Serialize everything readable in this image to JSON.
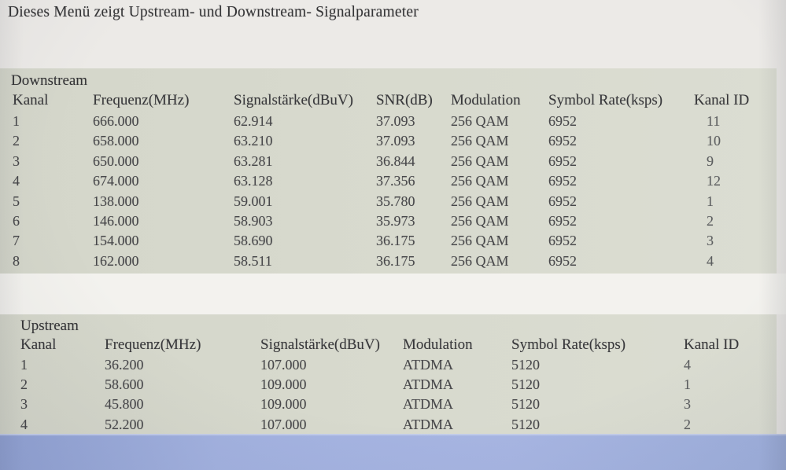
{
  "page": {
    "title": "Dieses Menü zeigt Upstream- und Downstream- Signalparameter"
  },
  "downstream": {
    "section_label": "Downstream",
    "columns": [
      "Kanal",
      "Frequenz(MHz)",
      "Signalstärke(dBuV)",
      "SNR(dB)",
      "Modulation",
      "Symbol Rate(ksps)",
      "Kanal ID"
    ],
    "rows": [
      [
        "1",
        "666.000",
        "62.914",
        "37.093",
        "256 QAM",
        "6952",
        "11"
      ],
      [
        "2",
        "658.000",
        "63.210",
        "37.093",
        "256 QAM",
        "6952",
        "10"
      ],
      [
        "3",
        "650.000",
        "63.281",
        "36.844",
        "256 QAM",
        "6952",
        "9"
      ],
      [
        "4",
        "674.000",
        "63.128",
        "37.356",
        "256 QAM",
        "6952",
        "12"
      ],
      [
        "5",
        "138.000",
        "59.001",
        "35.780",
        "256 QAM",
        "6952",
        "1"
      ],
      [
        "6",
        "146.000",
        "58.903",
        "35.973",
        "256 QAM",
        "6952",
        "2"
      ],
      [
        "7",
        "154.000",
        "58.690",
        "36.175",
        "256 QAM",
        "6952",
        "3"
      ],
      [
        "8",
        "162.000",
        "58.511",
        "36.175",
        "256 QAM",
        "6952",
        "4"
      ]
    ]
  },
  "upstream": {
    "section_label": "Upstream",
    "columns": [
      "Kanal",
      "Frequenz(MHz)",
      "Signalstärke(dBuV)",
      "Modulation",
      "Symbol Rate(ksps)",
      "Kanal ID"
    ],
    "rows": [
      [
        "1",
        "36.200",
        "107.000",
        "ATDMA",
        "5120",
        "4"
      ],
      [
        "2",
        "58.600",
        "109.000",
        "ATDMA",
        "5120",
        "1"
      ],
      [
        "3",
        "45.800",
        "109.000",
        "ATDMA",
        "5120",
        "3"
      ],
      [
        "4",
        "52.200",
        "107.000",
        "ATDMA",
        "5120",
        "2"
      ]
    ]
  },
  "colors": {
    "screen-bg": "#eceae7",
    "gap-bg": "#f3f2ee",
    "panel-bg": "#d7d9cd",
    "desktop-blue": "#a7b5e2",
    "text": "#3a3a3c"
  }
}
